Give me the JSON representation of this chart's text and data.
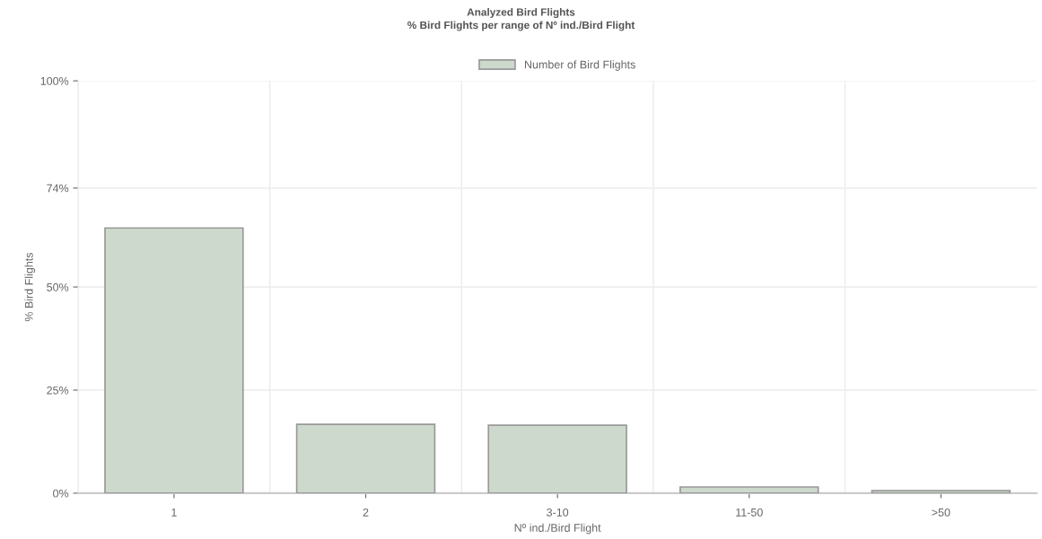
{
  "chart_data": {
    "type": "bar",
    "title": "Analyzed Bird Flights\n% Bird Flights per range of Nº ind./Bird Flight",
    "xlabel": "Nº ind./Bird Flight",
    "ylabel": "% Bird Flights",
    "categories": [
      "1",
      "2",
      "3-10",
      "11-50",
      ">50"
    ],
    "series": [
      {
        "name": "Number of Bird Flights",
        "color": "#cdd9cc",
        "values": [
          64.3,
          16.7,
          16.5,
          1.5,
          0.6
        ]
      }
    ],
    "ylim": [
      0,
      100
    ],
    "yticks": [
      {
        "value": 0,
        "label": "0%"
      },
      {
        "value": 25,
        "label": "25%"
      },
      {
        "value": 50,
        "label": "50%"
      },
      {
        "value": 74,
        "label": "74%"
      },
      {
        "value": 100,
        "label": "100%"
      }
    ],
    "grid": true,
    "legend": "top"
  }
}
